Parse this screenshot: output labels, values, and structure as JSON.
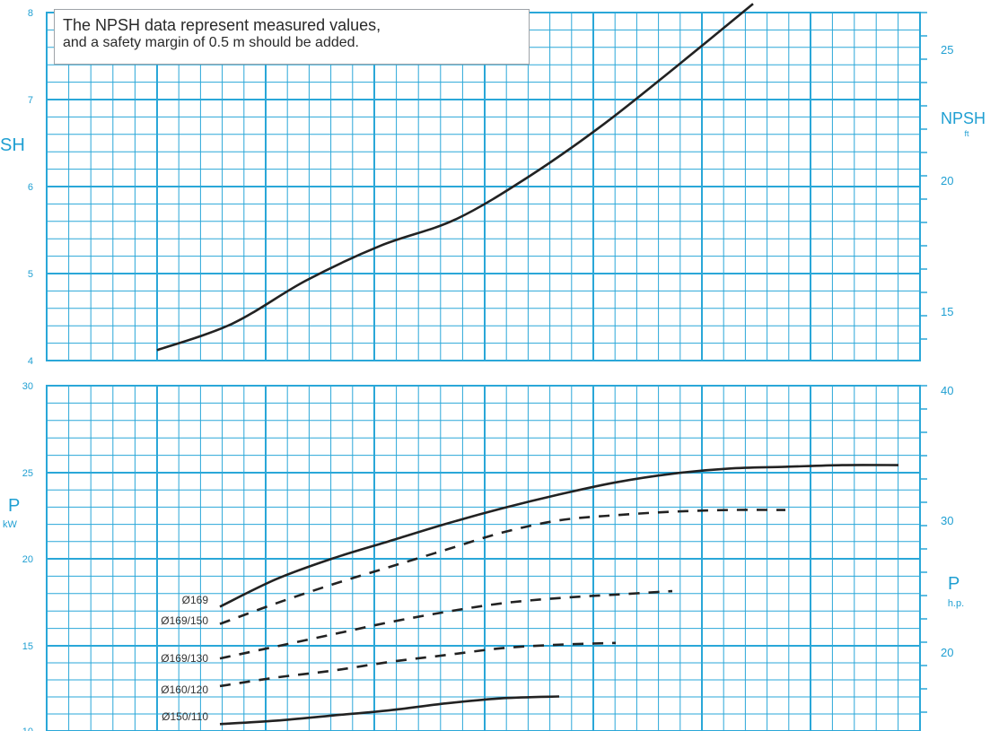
{
  "note": {
    "line1": "The NPSH data represent measured values,",
    "line2": "and a safety margin of 0.5 m should be added."
  },
  "colors": {
    "grid": "#2aa7d8",
    "curve": "#222222",
    "text": "#1f9fd2"
  },
  "chart_data": [
    {
      "type": "line",
      "panel": "npsh",
      "y_axis_left": {
        "label": "SH",
        "ticks": [
          "8",
          "7",
          "6",
          "5",
          "4"
        ],
        "ylim": [
          4,
          8
        ]
      },
      "y_axis_right": {
        "label": "NPSH",
        "unit": "ft",
        "ticks": [
          "25",
          "20",
          "15"
        ]
      },
      "series": [
        {
          "style": "solid",
          "x": [
            0.0,
            0.1,
            0.2,
            0.3,
            0.4,
            0.5,
            0.6,
            0.7,
            0.8
          ],
          "y": [
            4.12,
            4.42,
            4.92,
            5.32,
            5.62,
            6.12,
            6.72,
            7.4,
            8.1
          ]
        }
      ]
    },
    {
      "type": "line",
      "panel": "power",
      "y_axis_left": {
        "label": "P",
        "unit": "kW",
        "ticks": [
          "30",
          "25",
          "20",
          "15",
          "10"
        ],
        "ylim": [
          10,
          30
        ]
      },
      "y_axis_right": {
        "label": "P",
        "unit": "h.p.",
        "ticks": [
          "40",
          "30",
          "20"
        ]
      },
      "series": [
        {
          "name": "Ø169",
          "style": "solid",
          "x": [
            0.0,
            0.1,
            0.2,
            0.3,
            0.4,
            0.5,
            0.6,
            0.7,
            0.8,
            0.9,
            1.0,
            1.1,
            1.2
          ],
          "y": [
            17.2,
            18.8,
            20.0,
            21.0,
            22.0,
            22.9,
            23.7,
            24.4,
            24.9,
            25.2,
            25.3,
            25.4,
            25.4
          ]
        },
        {
          "name": "Ø169/150",
          "style": "dashed",
          "x": [
            0.0,
            0.1,
            0.2,
            0.3,
            0.4,
            0.5,
            0.6,
            0.7,
            0.8,
            0.9,
            1.0
          ],
          "y": [
            16.2,
            17.4,
            18.5,
            19.5,
            20.5,
            21.5,
            22.2,
            22.5,
            22.7,
            22.8,
            22.8
          ]
        },
        {
          "name": "Ø169/130",
          "style": "dashed",
          "x": [
            0.0,
            0.1,
            0.2,
            0.3,
            0.4,
            0.5,
            0.6,
            0.7,
            0.8
          ],
          "y": [
            14.2,
            14.9,
            15.6,
            16.3,
            16.9,
            17.4,
            17.7,
            17.9,
            18.1
          ]
        },
        {
          "name": "Ø160/120",
          "style": "dashed",
          "x": [
            0.0,
            0.1,
            0.2,
            0.3,
            0.4,
            0.5,
            0.6,
            0.7
          ],
          "y": [
            12.6,
            13.1,
            13.5,
            14.0,
            14.4,
            14.8,
            15.0,
            15.1
          ]
        },
        {
          "name": "Ø150/110",
          "style": "solid",
          "x": [
            0.0,
            0.1,
            0.2,
            0.3,
            0.4,
            0.5,
            0.6
          ],
          "y": [
            10.4,
            10.6,
            10.9,
            11.2,
            11.6,
            11.9,
            12.0
          ]
        }
      ]
    }
  ]
}
